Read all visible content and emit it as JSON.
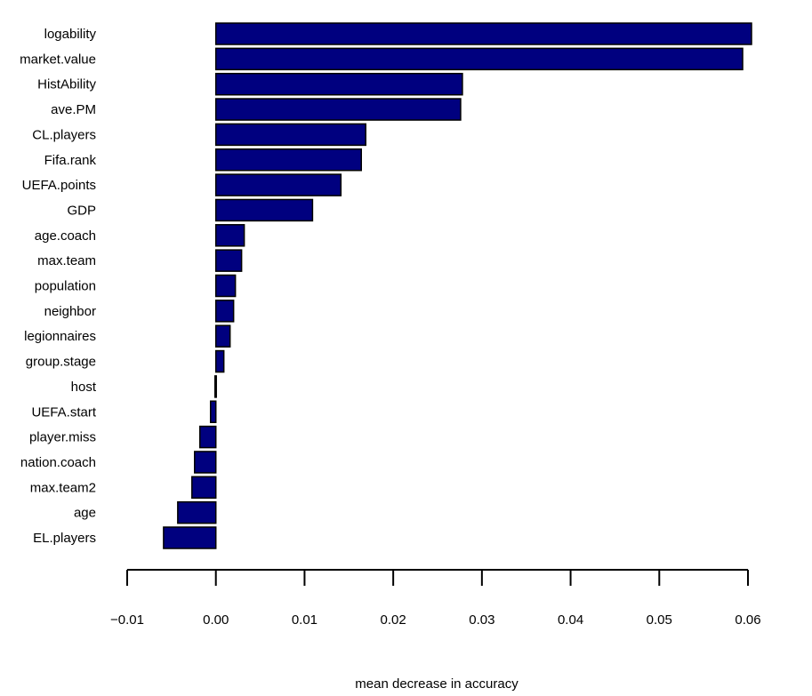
{
  "chart_data": {
    "type": "bar",
    "orientation": "horizontal",
    "title": "",
    "xlabel": "mean decrease in accuracy",
    "ylabel": "",
    "xlim": [
      -0.01,
      0.06
    ],
    "xticks": [
      -0.01,
      0.0,
      0.01,
      0.02,
      0.03,
      0.04,
      0.05,
      0.06
    ],
    "xtick_labels": [
      "−0.01",
      "0.00",
      "0.01",
      "0.02",
      "0.03",
      "0.04",
      "0.05",
      "0.06"
    ],
    "bar_color": "#00007f",
    "grid": false,
    "categories": [
      "logability",
      "market.value",
      "HistAbility",
      "ave.PM",
      "CL.players",
      "Fifa.rank",
      "UEFA.points",
      "GDP",
      "age.coach",
      "max.team",
      "population",
      "neighbor",
      "legionnaires",
      "group.stage",
      "host",
      "UEFA.start",
      "player.miss",
      "nation.coach",
      "max.team2",
      "age",
      "EL.players"
    ],
    "values": [
      0.0604,
      0.0594,
      0.0278,
      0.0276,
      0.0169,
      0.0164,
      0.0141,
      0.0109,
      0.0032,
      0.0029,
      0.0022,
      0.002,
      0.0016,
      0.0009,
      -0.0001,
      -0.0006,
      -0.0018,
      -0.0024,
      -0.0027,
      -0.0043,
      -0.0059
    ]
  }
}
